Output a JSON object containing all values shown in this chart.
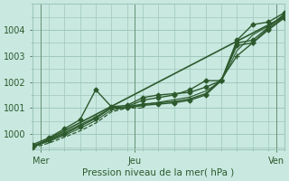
{
  "bg_color": "#c8e8e0",
  "grid_color": "#a0c8bc",
  "line_color": "#2d5a2d",
  "marker_color": "#2d5a2d",
  "text_color": "#2d5a2d",
  "ylabel_ticks": [
    1000,
    1001,
    1002,
    1003,
    1004
  ],
  "ylim": [
    999.4,
    1004.9
  ],
  "xlim": [
    0,
    96
  ],
  "xtick_positions": [
    3,
    39,
    93
  ],
  "xtick_labels": [
    "Mer",
    "Jeu",
    "Ven"
  ],
  "xlabel": "Pression niveau de la mer( hPa )",
  "vlines": [
    3,
    39,
    93
  ],
  "series": [
    {
      "x": [
        0,
        96
      ],
      "y": [
        999.5,
        1004.5
      ],
      "marker": null,
      "markersize": 0,
      "linewidth": 1.2,
      "dashed": false
    },
    {
      "x": [
        0,
        6,
        12,
        18,
        24,
        30,
        36,
        42,
        48,
        54,
        60,
        66,
        72,
        78,
        84,
        90,
        96
      ],
      "y": [
        999.5,
        999.75,
        1000.0,
        1000.3,
        1000.6,
        1001.0,
        1001.0,
        1001.1,
        1001.15,
        1001.2,
        1001.3,
        1001.5,
        1002.05,
        1003.5,
        1003.6,
        1004.1,
        1004.6
      ],
      "marker": "D",
      "markersize": 2.5,
      "linewidth": 1.0,
      "dashed": false
    },
    {
      "x": [
        0,
        6,
        12,
        18,
        24,
        30,
        36,
        42,
        48,
        54,
        60,
        66,
        72,
        78,
        84,
        90,
        96
      ],
      "y": [
        999.55,
        999.78,
        1000.05,
        1000.35,
        1000.65,
        1001.02,
        1001.05,
        1001.15,
        1001.2,
        1001.25,
        1001.35,
        1001.55,
        1002.1,
        1003.0,
        1003.5,
        1004.05,
        1004.5
      ],
      "marker": "+",
      "markersize": 4,
      "linewidth": 1.0,
      "dashed": false
    },
    {
      "x": [
        0,
        6,
        12,
        18,
        24,
        30,
        36,
        42,
        48,
        54,
        60,
        66,
        72,
        78,
        84,
        90,
        96
      ],
      "y": [
        999.6,
        999.85,
        1000.2,
        1000.55,
        1001.7,
        1001.05,
        1001.1,
        1001.4,
        1001.5,
        1001.55,
        1001.6,
        1001.8,
        1002.05,
        1003.6,
        1004.2,
        1004.3,
        1004.65
      ],
      "marker": "D",
      "markersize": 2.5,
      "linewidth": 1.0,
      "dashed": false
    },
    {
      "x": [
        0,
        6,
        12,
        18,
        24,
        30,
        36,
        42
      ],
      "y": [
        999.48,
        999.65,
        999.88,
        1000.12,
        1000.42,
        1000.85,
        1001.0,
        1001.0
      ],
      "marker": null,
      "markersize": 0,
      "linewidth": 0.9,
      "dashed": true
    },
    {
      "x": [
        36,
        42,
        48,
        54,
        60,
        66,
        72,
        78,
        84,
        90,
        96
      ],
      "y": [
        1001.05,
        1001.3,
        1001.4,
        1001.5,
        1001.7,
        1002.05,
        1002.05,
        1003.4,
        1003.5,
        1004.0,
        1004.45
      ],
      "marker": "D",
      "markersize": 2.5,
      "linewidth": 1.0,
      "dashed": false
    },
    {
      "x": [
        0,
        6,
        12,
        18,
        24,
        30,
        36,
        42,
        48,
        54,
        60,
        66,
        72,
        78,
        84,
        90,
        96
      ],
      "y": [
        999.52,
        999.72,
        999.95,
        1000.22,
        1000.52,
        1000.92,
        1001.02,
        1001.12,
        1001.22,
        1001.32,
        1001.42,
        1001.65,
        1002.02,
        1003.2,
        1003.8,
        1004.15,
        1004.55
      ],
      "marker": null,
      "markersize": 0,
      "linewidth": 0.8,
      "dashed": false
    }
  ]
}
